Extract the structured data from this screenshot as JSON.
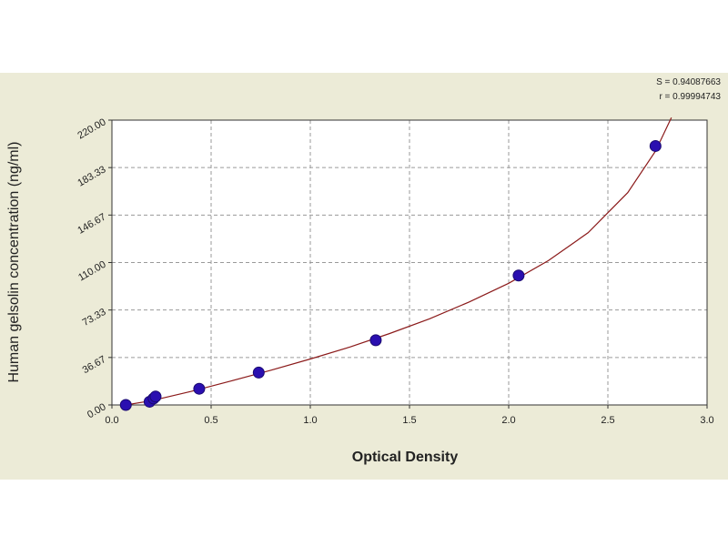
{
  "chart_data": {
    "type": "scatter",
    "title": "",
    "xlabel": "Optical Density",
    "ylabel": "Human gelsolin concentration (ng/ml)",
    "xlim": [
      0.0,
      3.0
    ],
    "ylim": [
      0.0,
      220.0
    ],
    "x_ticks": [
      "0.0",
      "0.5",
      "1.0",
      "1.5",
      "2.0",
      "2.5",
      "3.0"
    ],
    "y_ticks": [
      "0.00",
      "36.67",
      "73.33",
      "110.00",
      "146.67",
      "183.33",
      "220.00"
    ],
    "grid": true,
    "stats": {
      "s": "S = 0.94087663",
      "r": "r = 0.99994743"
    },
    "series": [
      {
        "kind": "points",
        "color": "#2a0fb0",
        "x": [
          0.07,
          0.19,
          0.21,
          0.22,
          0.44,
          0.74,
          1.33,
          2.05,
          2.74
        ],
        "y": [
          0.0,
          2.5,
          5.0,
          6.5,
          12.5,
          25.0,
          50.0,
          100.0,
          200.0
        ]
      },
      {
        "kind": "curve",
        "color": "#8b1a1a",
        "x": [
          0.07,
          0.2,
          0.4,
          0.6,
          0.8,
          1.0,
          1.2,
          1.4,
          1.6,
          1.8,
          2.0,
          2.2,
          2.4,
          2.6,
          2.74,
          2.82
        ],
        "y": [
          0.0,
          3.3,
          10.5,
          18.5,
          26.8,
          35.5,
          44.8,
          55.2,
          66.5,
          79.5,
          94.0,
          111.5,
          133.0,
          164.0,
          196.0,
          222.0
        ]
      }
    ]
  }
}
